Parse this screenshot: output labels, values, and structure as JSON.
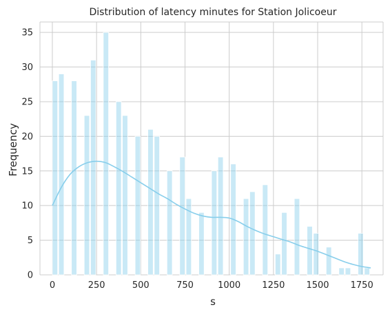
{
  "chart_data": {
    "type": "bar",
    "title": "Distribution of latency minutes for Station Jolicoeur",
    "xlabel": "s",
    "ylabel": "Frequency",
    "xlim": [
      -70,
      1870
    ],
    "ylim": [
      0,
      36.5
    ],
    "grid": true,
    "x_ticks": [
      0,
      250,
      500,
      750,
      1000,
      1250,
      1500,
      1750
    ],
    "x_tick_labels": [
      "0",
      "250",
      "500",
      "750",
      "1000",
      "1250",
      "1500",
      "1750"
    ],
    "y_ticks": [
      0,
      5,
      10,
      15,
      20,
      25,
      30,
      35
    ],
    "y_tick_labels": [
      "0",
      "5",
      "10",
      "15",
      "20",
      "25",
      "30",
      "35"
    ],
    "bar_color": "#87ceeb",
    "kde_color": "#87ceeb",
    "bars": [
      {
        "x0": 0,
        "x1": 30,
        "value": 28
      },
      {
        "x0": 36,
        "x1": 66,
        "value": 29
      },
      {
        "x0": 108,
        "x1": 138,
        "value": 28
      },
      {
        "x0": 180,
        "x1": 210,
        "value": 23
      },
      {
        "x0": 216,
        "x1": 246,
        "value": 31
      },
      {
        "x0": 288,
        "x1": 318,
        "value": 35
      },
      {
        "x0": 360,
        "x1": 390,
        "value": 25
      },
      {
        "x0": 396,
        "x1": 426,
        "value": 23
      },
      {
        "x0": 468,
        "x1": 498,
        "value": 20
      },
      {
        "x0": 540,
        "x1": 570,
        "value": 21
      },
      {
        "x0": 576,
        "x1": 606,
        "value": 20
      },
      {
        "x0": 648,
        "x1": 678,
        "value": 15
      },
      {
        "x0": 720,
        "x1": 750,
        "value": 17
      },
      {
        "x0": 756,
        "x1": 786,
        "value": 11
      },
      {
        "x0": 828,
        "x1": 858,
        "value": 9
      },
      {
        "x0": 900,
        "x1": 930,
        "value": 15
      },
      {
        "x0": 936,
        "x1": 966,
        "value": 17
      },
      {
        "x0": 1008,
        "x1": 1038,
        "value": 16
      },
      {
        "x0": 1080,
        "x1": 1110,
        "value": 11
      },
      {
        "x0": 1116,
        "x1": 1146,
        "value": 12
      },
      {
        "x0": 1188,
        "x1": 1218,
        "value": 13
      },
      {
        "x0": 1260,
        "x1": 1290,
        "value": 3
      },
      {
        "x0": 1296,
        "x1": 1326,
        "value": 9
      },
      {
        "x0": 1368,
        "x1": 1398,
        "value": 11
      },
      {
        "x0": 1440,
        "x1": 1470,
        "value": 7
      },
      {
        "x0": 1476,
        "x1": 1506,
        "value": 6
      },
      {
        "x0": 1548,
        "x1": 1578,
        "value": 4
      },
      {
        "x0": 1620,
        "x1": 1650,
        "value": 1
      },
      {
        "x0": 1656,
        "x1": 1686,
        "value": 1
      },
      {
        "x0": 1728,
        "x1": 1758,
        "value": 6
      },
      {
        "x0": 1764,
        "x1": 1794,
        "value": 1
      }
    ],
    "kde": {
      "x": [
        0,
        50,
        100,
        150,
        200,
        250,
        300,
        350,
        400,
        450,
        500,
        550,
        600,
        650,
        700,
        750,
        800,
        850,
        900,
        950,
        1000,
        1050,
        1100,
        1150,
        1200,
        1250,
        1300,
        1350,
        1400,
        1450,
        1500,
        1550,
        1600,
        1650,
        1700,
        1750,
        1800
      ],
      "y": [
        10,
        12.6,
        14.5,
        15.6,
        16.2,
        16.4,
        16.2,
        15.6,
        14.9,
        14.1,
        13.3,
        12.5,
        11.7,
        11.0,
        10.2,
        9.5,
        8.9,
        8.5,
        8.3,
        8.3,
        8.2,
        7.7,
        7.0,
        6.4,
        5.9,
        5.5,
        5.1,
        4.7,
        4.2,
        3.8,
        3.4,
        2.9,
        2.4,
        1.9,
        1.5,
        1.2,
        1.0
      ]
    }
  }
}
